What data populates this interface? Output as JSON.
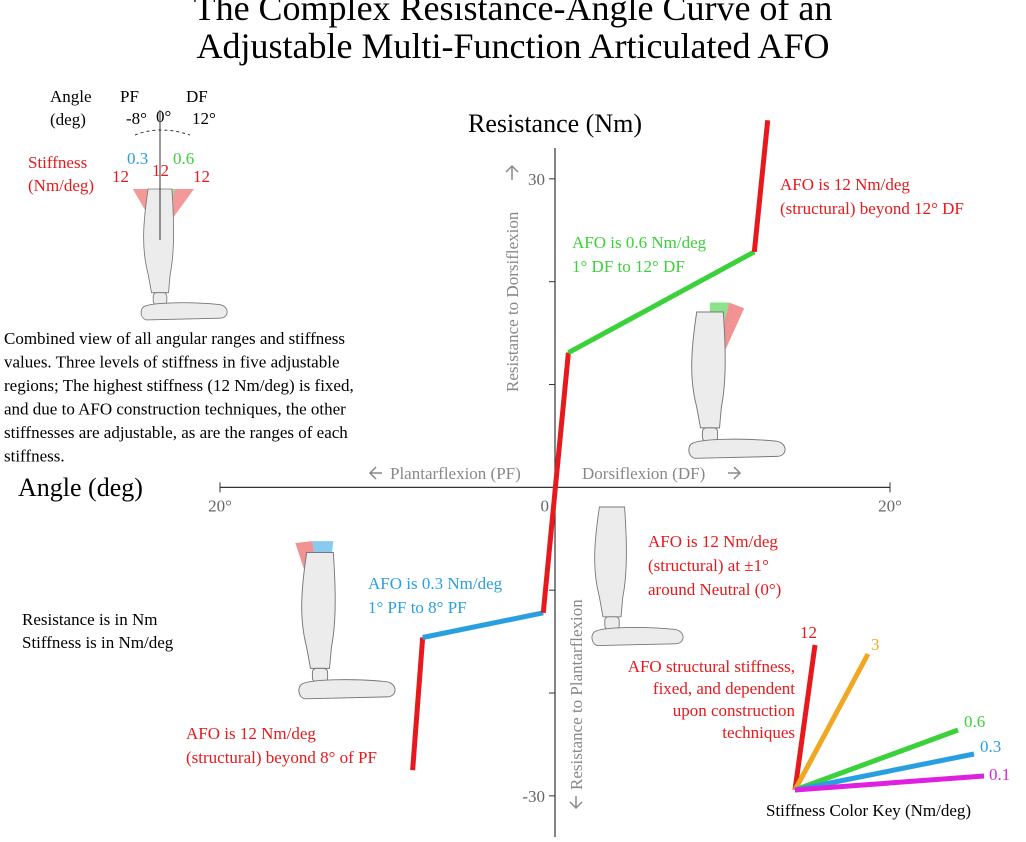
{
  "chart_data": {
    "type": "line",
    "title": [
      "The Complex Resistance-Angle Curve of an",
      "Adjustable Multi-Function Articulated AFO"
    ],
    "x_label": "Angle (deg)",
    "y_label": "Resistance (Nm)",
    "xlim": [
      -20,
      20
    ],
    "ylim": [
      -34,
      33
    ],
    "xticks": [
      {
        "value": -20,
        "label": "20°"
      },
      0,
      {
        "value": 20,
        "label": "20°"
      }
    ],
    "yticks": [
      {
        "value": -30,
        "label": "-30"
      },
      {
        "value": -20,
        "label": null
      },
      {
        "value": -10,
        "label": null
      },
      {
        "value": 10,
        "label": null
      },
      {
        "value": 20,
        "label": null
      },
      30
    ],
    "x_direction_labels": {
      "negative": "Plantarflexion (PF)",
      "positive": "Dorsiflexion (DF)"
    },
    "y_direction_labels": {
      "positive": "Resistance to Dorsiflexion",
      "negative": "Resistance to Plantarflexion"
    },
    "series": [
      {
        "color": "#e8191c",
        "x": [
          -8.5,
          -7.9
        ],
        "values": [
          -27.5,
          -14.6
        ]
      },
      {
        "color": "#2a9fe0",
        "x": [
          -7.9,
          -0.7
        ],
        "values": [
          -14.6,
          -12.2
        ]
      },
      {
        "color": "#e8191c",
        "x": [
          -0.7,
          0.8
        ],
        "values": [
          -12.2,
          13.1
        ]
      },
      {
        "color": "#3ad13a",
        "x": [
          0.8,
          11.9
        ],
        "values": [
          13.1,
          22.9
        ]
      },
      {
        "color": "#e8191c",
        "x": [
          11.9,
          12.7
        ],
        "values": [
          22.9,
          35.7
        ]
      }
    ],
    "annotations": [
      {
        "lines": [
          "AFO is 12 Nm/deg",
          "(structural) beyond 12° DF"
        ],
        "color": "#e8191c"
      },
      {
        "lines": [
          "AFO is 0.6 Nm/deg",
          "1° DF to 12° DF"
        ],
        "color": "#3ad13a"
      },
      {
        "lines": [
          "AFO is 12 Nm/deg",
          "(structural) at ±1°",
          "around Neutral (0°)"
        ],
        "color": "#e8191c"
      },
      {
        "lines": [
          "AFO is 0.3 Nm/deg",
          "1° PF to 8° PF"
        ],
        "color": "#2a9fe0"
      },
      {
        "lines": [
          "AFO is 12 Nm/deg",
          "(structural) beyond 8° of PF"
        ],
        "color": "#e8191c"
      }
    ]
  },
  "inset": {
    "angle_label": [
      "Angle",
      "(deg)"
    ],
    "pf": "PF",
    "df": "DF",
    "angles": [
      "-8°",
      "0°",
      "12°"
    ],
    "stiffness_label": [
      "Stiffness",
      "(Nm/deg)"
    ],
    "stiffness_values": [
      {
        "value": 12,
        "color": "#e8191c"
      },
      {
        "value": 0.3,
        "color": "#2a9fe0"
      },
      {
        "value": 12,
        "color": "#e8191c"
      },
      {
        "value": 0.6,
        "color": "#3ad13a"
      },
      {
        "value": 12,
        "color": "#e8191c"
      }
    ]
  },
  "description": [
    "Combined view of all angular ranges and stiffness",
    "values. Three levels of stiffness in five adjustable",
    "regions; The highest stiffness (12 Nm/deg) is fixed,",
    "and due to AFO construction techniques, the other",
    "stiffnesses are adjustable, as are the ranges of each",
    "stiffness."
  ],
  "units_note": [
    "Resistance is in Nm",
    "Stiffness is in Nm/deg"
  ],
  "color_key": {
    "title": "Stiffness Color Key (Nm/deg)",
    "note": [
      "AFO structural stiffness,",
      "fixed, and dependent",
      "upon construction",
      "techniques"
    ],
    "items": [
      {
        "value": 12,
        "color": "#e8191c"
      },
      {
        "value": 3,
        "color": "#f0a823"
      },
      {
        "value": 0.6,
        "color": "#3ad13a"
      },
      {
        "value": 0.3,
        "color": "#2a9fe0"
      },
      {
        "value": 0.1,
        "color": "#e020e0"
      }
    ]
  }
}
